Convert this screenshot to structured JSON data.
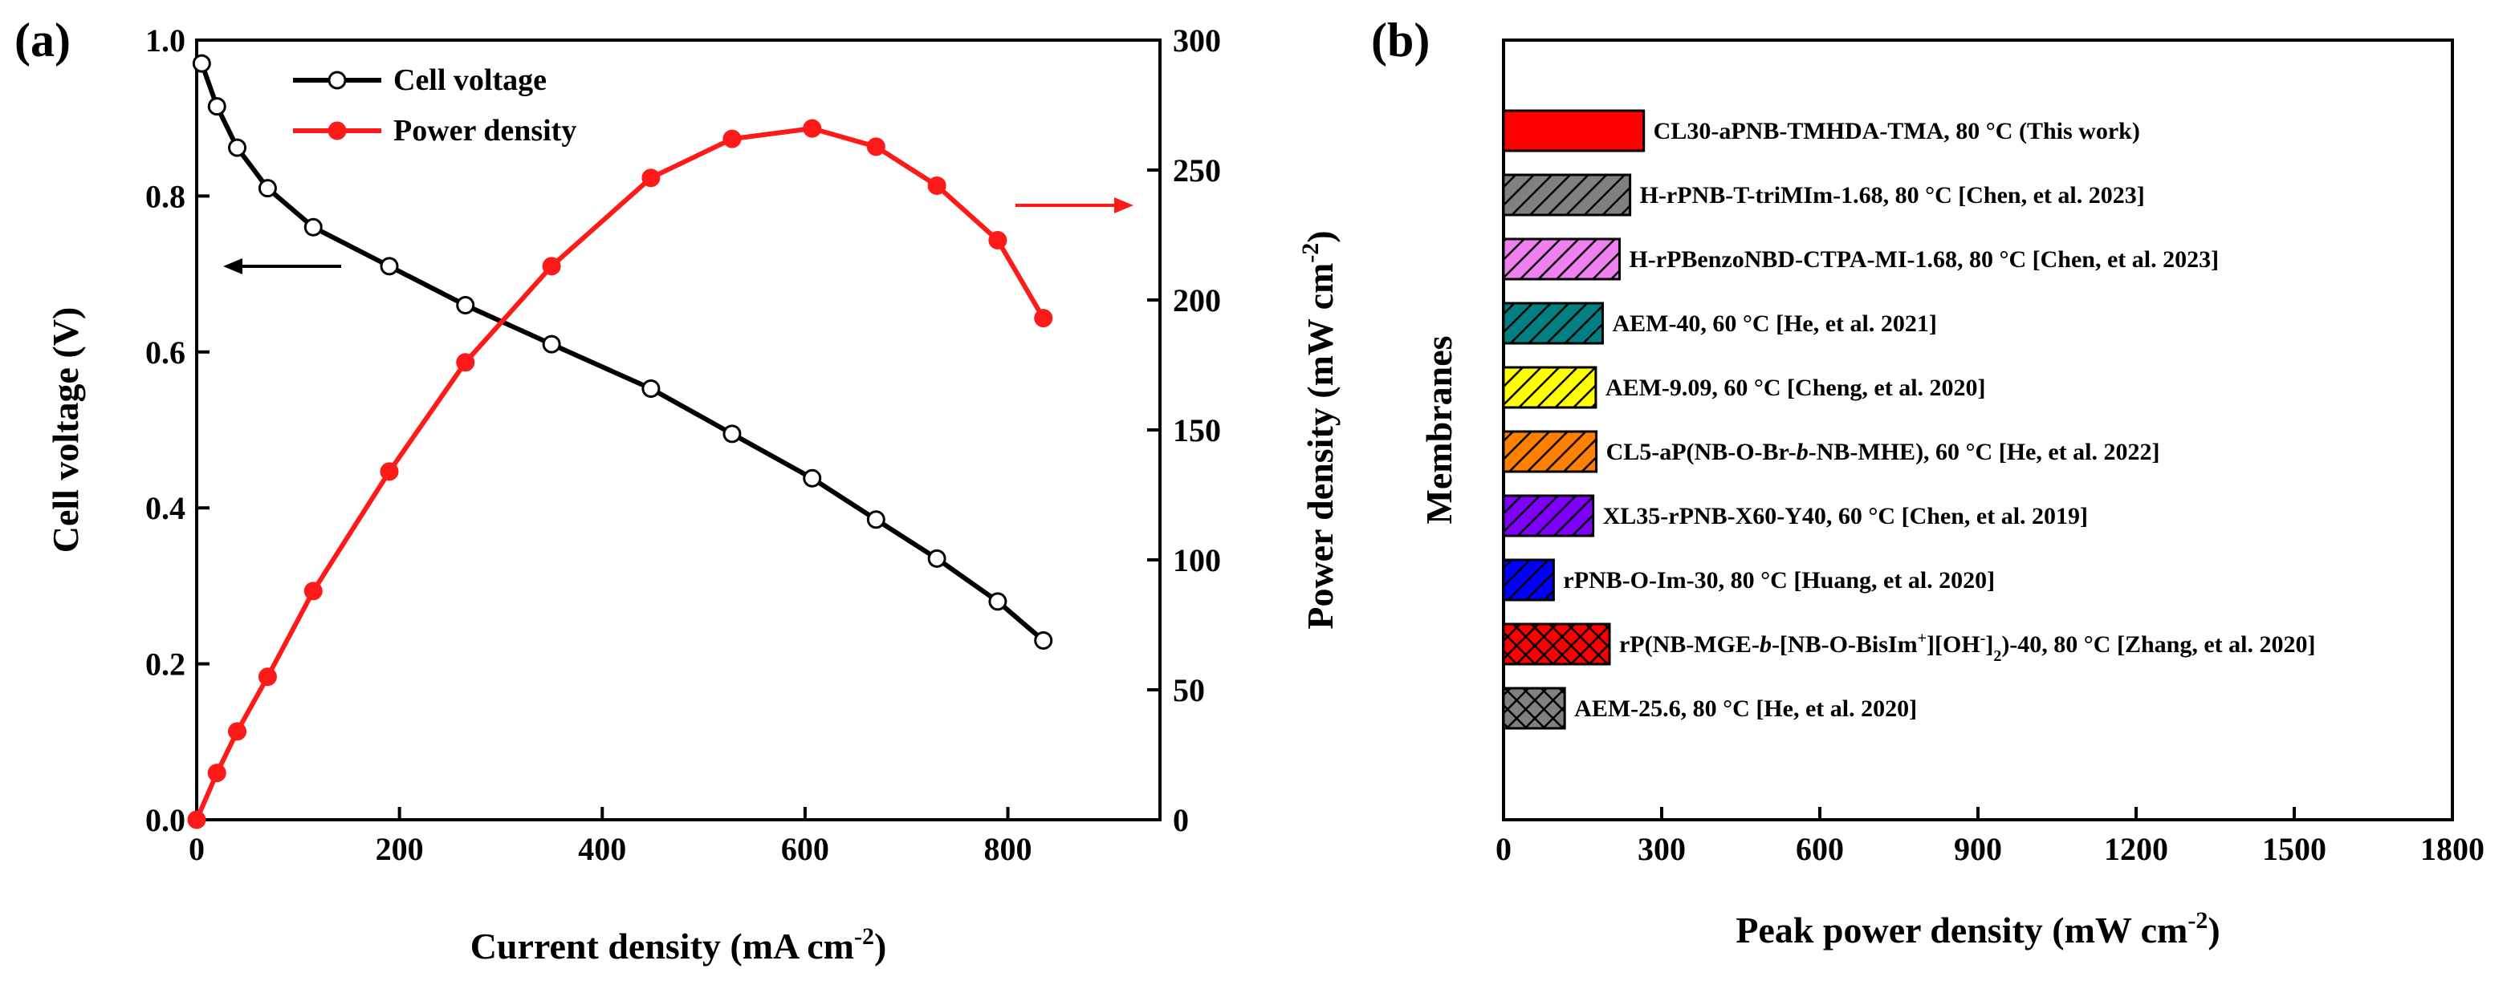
{
  "chart_data": [
    {
      "panel": "(a)",
      "type": "line",
      "xlabel": "Current density (mA cm",
      "xlabel_sup": "-2",
      "xlabel_end": ")",
      "ylabel_left": "Cell voltage (V)",
      "ylabel_right": "Power density (mW cm",
      "ylabel_right_sup": "-2",
      "ylabel_right_end": ")",
      "xlim": [
        0,
        950
      ],
      "ylim_left": [
        0,
        1.0
      ],
      "ylim_right": [
        0,
        300
      ],
      "xticks": [
        "0",
        "200",
        "400",
        "600",
        "800"
      ],
      "yticks_left": [
        "0.0",
        "0.2",
        "0.4",
        "0.6",
        "0.8",
        "1.0"
      ],
      "yticks_right": [
        "0",
        "50",
        "100",
        "150",
        "200",
        "250",
        "300"
      ],
      "series": [
        {
          "name": "Cell voltage",
          "axis": "left",
          "color": "#000000",
          "marker": "open-circle",
          "x": [
            5,
            20,
            40,
            70,
            115,
            190,
            265,
            350,
            448,
            528,
            607,
            670,
            730,
            790,
            835
          ],
          "y": [
            0.97,
            0.915,
            0.862,
            0.81,
            0.76,
            0.71,
            0.66,
            0.61,
            0.553,
            0.495,
            0.438,
            0.385,
            0.335,
            0.28,
            0.23
          ]
        },
        {
          "name": "Power density",
          "axis": "right",
          "color": "#ff1a1a",
          "marker": "filled-circle",
          "x": [
            0,
            20,
            40,
            70,
            115,
            190,
            265,
            350,
            448,
            528,
            607,
            670,
            730,
            790,
            835
          ],
          "y": [
            0,
            18,
            34,
            55,
            88,
            134,
            176,
            213,
            247,
            262,
            266,
            259,
            244,
            223,
            193
          ]
        }
      ]
    },
    {
      "panel": "(b)",
      "type": "bar",
      "orientation": "horizontal",
      "xlabel": "Peak power density (mW cm",
      "xlabel_sup": "-2",
      "xlabel_end": ")",
      "ylabel": "Membranes",
      "xlim": [
        0,
        1800
      ],
      "xticks": [
        "0",
        "300",
        "600",
        "900",
        "1200",
        "1500",
        "1800"
      ],
      "bars": [
        {
          "parts": [
            "CL30-aPNB-TMHDA-TMA, 80 °C (This work)"
          ],
          "value": 266,
          "color": "#ff0000",
          "pattern": "solid"
        },
        {
          "parts": [
            "H-rPNB-T-triMIm-1.68, 80 °C [Chen, et al. 2023]"
          ],
          "value": 240,
          "color": "#808080",
          "pattern": "hatch"
        },
        {
          "parts": [
            "H-rPBenzoNBD-CTPA-MI-1.68, 80 °C [Chen, et al. 2023]"
          ],
          "value": 220,
          "color": "#f080f0",
          "pattern": "hatch"
        },
        {
          "parts": [
            "AEM-40, 60 °C [He, et al. 2021]"
          ],
          "value": 188,
          "color": "#008080",
          "pattern": "hatch"
        },
        {
          "parts": [
            "AEM-9.09, 60 °C [Cheng, et al. 2020]"
          ],
          "value": 175,
          "color": "#ffff00",
          "pattern": "hatch"
        },
        {
          "parts": [
            "CL5-aP(NB-O-Br-",
            "b",
            "-NB-MHE), 60 °C [He, et al. 2022]"
          ],
          "value": 176,
          "color": "#ff8000",
          "pattern": "hatch"
        },
        {
          "parts": [
            "XL35-rPNB-X60-Y40, 60 °C [Chen, et al. 2019]"
          ],
          "value": 170,
          "color": "#8000ff",
          "pattern": "hatch"
        },
        {
          "parts": [
            "rPNB-O-Im-30, 80 °C [Huang, et al. 2020]"
          ],
          "value": 95,
          "color": "#0000ff",
          "pattern": "hatch"
        },
        {
          "parts": [
            "rP(NB-MGE-",
            "b",
            "-[NB-O-BisIm",
            "+",
            "][OH",
            "-",
            "]",
            "2",
            ")-40, 80 °C [Zhang, et al. 2020]"
          ],
          "value": 201,
          "color": "#ff0000",
          "pattern": "cross"
        },
        {
          "parts": [
            "AEM-25.6, 80 °C [He, et al. 2020]"
          ],
          "value": 116,
          "color": "#808080",
          "pattern": "cross"
        }
      ]
    }
  ]
}
